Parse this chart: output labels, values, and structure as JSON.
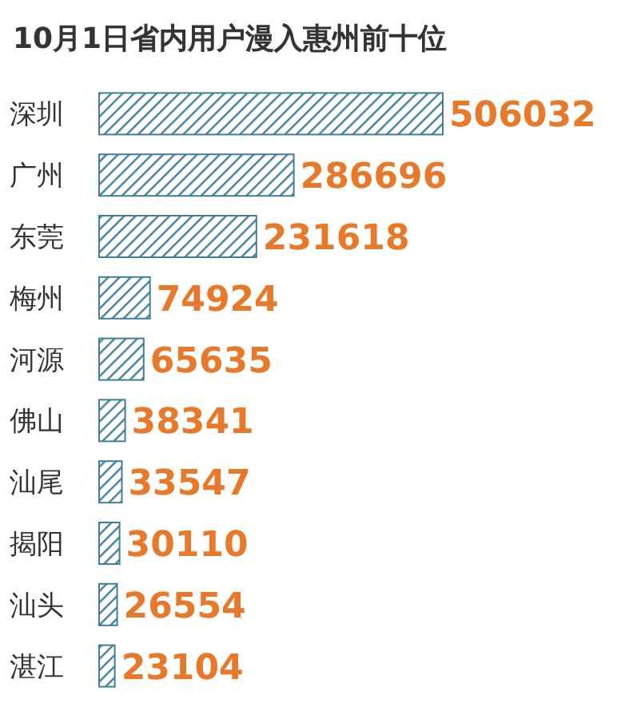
{
  "chart_data": {
    "type": "bar",
    "orientation": "horizontal",
    "title": "10月1日省内用户漫入惠州前十位",
    "categories": [
      "深圳",
      "广州",
      "东莞",
      "梅州",
      "河源",
      "佛山",
      "汕尾",
      "揭阳",
      "汕头",
      "湛江"
    ],
    "values": [
      506032,
      286696,
      231618,
      74924,
      65635,
      38341,
      33547,
      30110,
      26554,
      23104
    ],
    "color": "#3f7f99",
    "data_labels": true
  }
}
